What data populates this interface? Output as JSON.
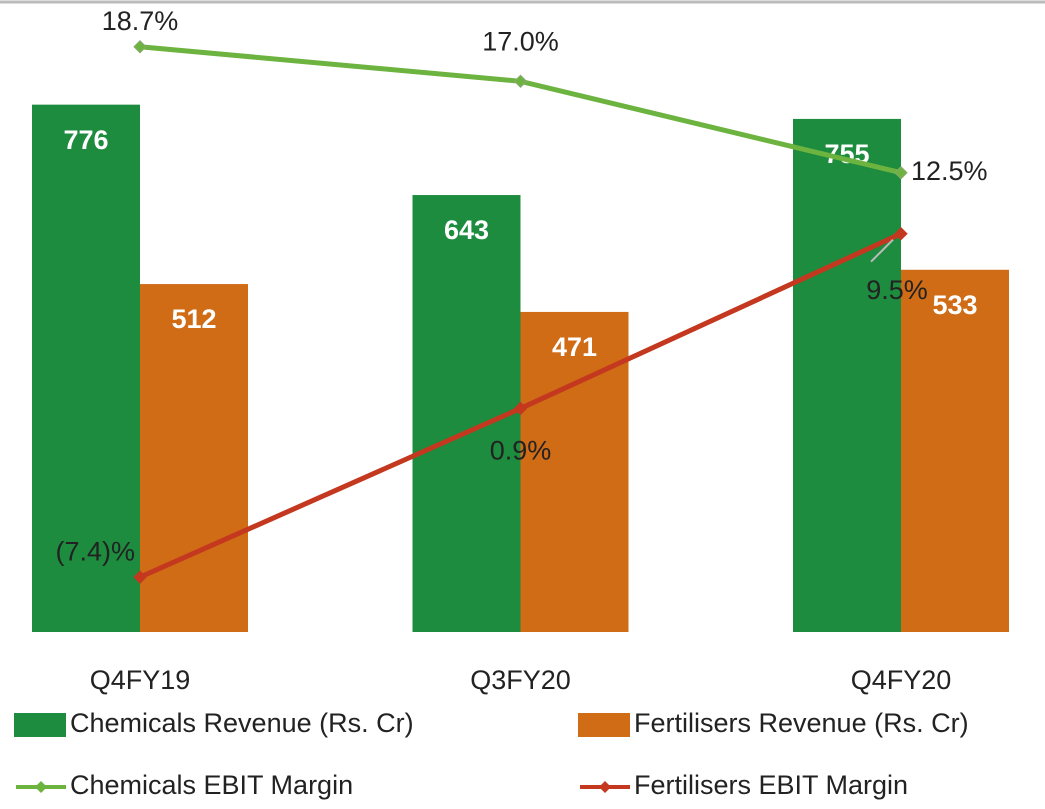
{
  "chart_data": {
    "type": "bar_line",
    "categories": [
      "Q4FY19",
      "Q3FY20",
      "Q4FY20"
    ],
    "series": [
      {
        "name": "Chemicals Revenue (Rs. Cr)",
        "type": "bar",
        "color": "#1e8c3e",
        "values": [
          776,
          643,
          755
        ]
      },
      {
        "name": "Fertilisers Revenue (Rs. Cr)",
        "type": "bar",
        "color": "#d06b16",
        "values": [
          512,
          471,
          533
        ]
      },
      {
        "name": "Chemicals EBIT Margin",
        "type": "line",
        "axis": "y2",
        "color": "#6cb33f",
        "values": [
          18.7,
          17.0,
          12.5
        ],
        "value_labels": [
          "18.7%",
          "17.0%",
          "12.5%"
        ]
      },
      {
        "name": "Fertilisers EBIT Margin",
        "type": "line",
        "axis": "y2",
        "color": "#c3381f",
        "values": [
          -7.4,
          0.9,
          9.5
        ],
        "value_labels": [
          "(7.4)%",
          "0.9%",
          "9.5%"
        ]
      }
    ],
    "ylim": [
      0,
      930
    ],
    "y2lim": [
      -10.1,
      21
    ]
  }
}
